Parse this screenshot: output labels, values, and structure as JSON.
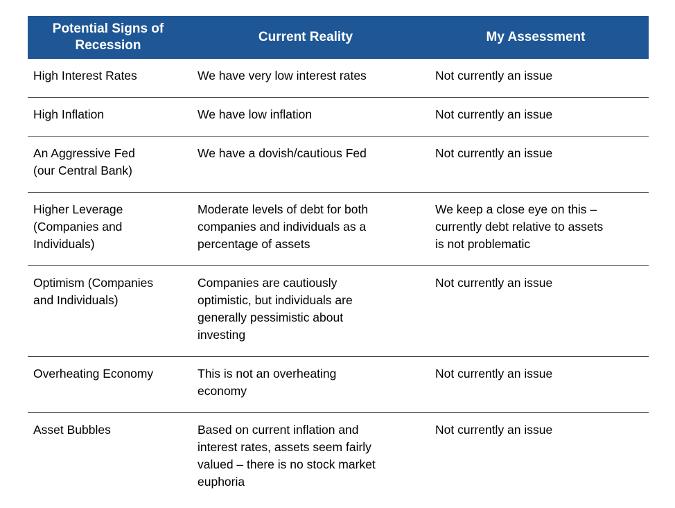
{
  "colors": {
    "header_bg": "#1F5796",
    "header_text": "#FFFFFF",
    "row_divider": "#3F3F3F",
    "body_text": "#000000",
    "page_bg": "#FFFFFF"
  },
  "table": {
    "columns": [
      {
        "id": "sign",
        "label": "Potential Signs of\nRecession"
      },
      {
        "id": "reality",
        "label": "Current Reality"
      },
      {
        "id": "assessment",
        "label": "My Assessment"
      }
    ],
    "rows": [
      {
        "sign": "High Interest Rates",
        "reality": "We have very low interest rates",
        "assessment": "Not currently an issue"
      },
      {
        "sign": "High Inflation",
        "reality": "We have low inflation",
        "assessment": "Not currently an issue"
      },
      {
        "sign": "An Aggressive Fed\n(our Central Bank)",
        "reality": "We have a dovish/cautious Fed",
        "assessment": "Not currently an issue"
      },
      {
        "sign": "Higher Leverage\n(Companies and\nIndividuals)",
        "reality": "Moderate levels of debt for both\ncompanies and individuals as a\npercentage of assets",
        "assessment": "We keep a close eye on this –\ncurrently debt relative to assets\nis not problematic"
      },
      {
        "sign": "Optimism (Companies\nand Individuals)",
        "reality": "Companies are cautiously\noptimistic, but individuals are\ngenerally pessimistic about\ninvesting",
        "assessment": "Not currently an issue"
      },
      {
        "sign": "Overheating Economy",
        "reality": "This is not an overheating\neconomy",
        "assessment": "Not currently an issue"
      },
      {
        "sign": "Asset Bubbles",
        "reality": "Based on current inflation and\ninterest rates, assets seem fairly\nvalued – there is no stock market\neuphoria",
        "assessment": "Not currently an issue"
      }
    ]
  }
}
